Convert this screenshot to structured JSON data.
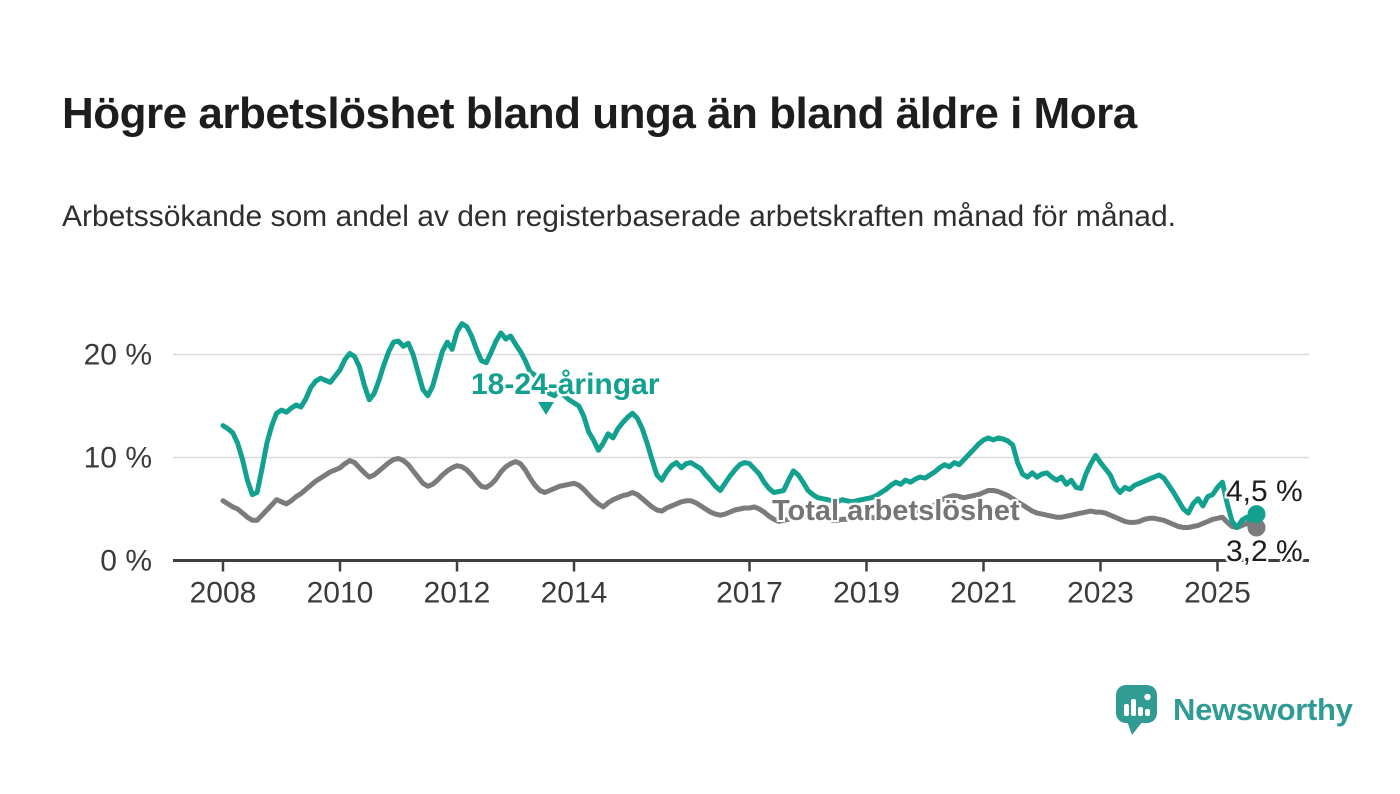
{
  "header": {
    "title": "Högre arbetslöshet bland unga än bland äldre i Mora",
    "subtitle": "Arbetssökande som andel av den registerbaserade arbetskraften månad för månad."
  },
  "chart_data": {
    "type": "line",
    "unit": "%",
    "grid": "horizontal-light",
    "x_axis": {
      "start": "2008-01",
      "end": "2025-09",
      "frequency": "monthly",
      "ticks": [
        2008,
        2010,
        2012,
        2014,
        2017,
        2019,
        2021,
        2023,
        2025
      ]
    },
    "y_axis": {
      "range": [
        0,
        24
      ],
      "ticks": [
        {
          "value": 0,
          "label": "0 %"
        },
        {
          "value": 10,
          "label": "10 %"
        },
        {
          "value": 20,
          "label": "20 %"
        }
      ]
    },
    "series": [
      {
        "name": "Total arbetslöshet",
        "color": "#7a7b7d",
        "end_value_label": "3,2 %",
        "values": [
          5.8,
          5.5,
          5.2,
          5.0,
          4.6,
          4.2,
          3.9,
          3.9,
          4.4,
          4.9,
          5.4,
          5.9,
          5.7,
          5.5,
          5.8,
          6.2,
          6.5,
          6.9,
          7.3,
          7.7,
          8.0,
          8.3,
          8.6,
          8.8,
          9.0,
          9.4,
          9.7,
          9.5,
          9.0,
          8.5,
          8.1,
          8.3,
          8.7,
          9.1,
          9.5,
          9.8,
          9.9,
          9.7,
          9.3,
          8.7,
          8.1,
          7.5,
          7.2,
          7.4,
          7.8,
          8.3,
          8.7,
          9.0,
          9.2,
          9.1,
          8.8,
          8.3,
          7.7,
          7.2,
          7.1,
          7.4,
          7.9,
          8.6,
          9.1,
          9.4,
          9.6,
          9.4,
          8.8,
          8.0,
          7.3,
          6.8,
          6.6,
          6.8,
          7.0,
          7.2,
          7.3,
          7.4,
          7.5,
          7.3,
          6.9,
          6.4,
          5.9,
          5.5,
          5.2,
          5.6,
          5.9,
          6.1,
          6.3,
          6.4,
          6.6,
          6.4,
          6.0,
          5.6,
          5.2,
          4.9,
          4.8,
          5.1,
          5.3,
          5.5,
          5.7,
          5.8,
          5.8,
          5.6,
          5.3,
          5.0,
          4.7,
          4.5,
          4.4,
          4.5,
          4.7,
          4.9,
          5.0,
          5.1,
          5.1,
          5.2,
          5.0,
          4.7,
          4.3,
          4.0,
          3.8,
          3.9,
          4.0,
          4.1,
          4.2,
          4.3,
          4.3,
          4.2,
          4.1,
          4.0,
          4.0,
          3.9,
          3.9,
          4.0,
          4.0,
          4.1,
          4.1,
          4.2,
          4.2,
          4.2,
          4.1,
          4.2,
          4.3,
          4.4,
          4.5,
          4.6,
          4.6,
          4.7,
          4.8,
          4.9,
          5.1,
          5.2,
          5.4,
          5.8,
          6.0,
          6.2,
          6.3,
          6.2,
          6.1,
          6.2,
          6.3,
          6.4,
          6.6,
          6.8,
          6.8,
          6.7,
          6.5,
          6.3,
          6.0,
          5.7,
          5.4,
          5.1,
          4.8,
          4.6,
          4.5,
          4.4,
          4.3,
          4.2,
          4.2,
          4.3,
          4.4,
          4.5,
          4.6,
          4.7,
          4.8,
          4.7,
          4.7,
          4.6,
          4.4,
          4.2,
          4.0,
          3.8,
          3.7,
          3.7,
          3.8,
          4.0,
          4.1,
          4.1,
          4.0,
          3.9,
          3.7,
          3.5,
          3.3,
          3.2,
          3.2,
          3.3,
          3.4,
          3.6,
          3.8,
          4.0,
          4.1,
          4.2,
          3.7,
          3.3,
          3.2,
          3.4,
          3.6,
          3.4,
          3.2
        ]
      },
      {
        "name": "18-24-åringar",
        "color": "#13a18f",
        "end_value_label": "4,5 %",
        "values": [
          13.1,
          12.8,
          12.4,
          11.4,
          9.8,
          7.8,
          6.4,
          6.6,
          8.9,
          11.4,
          13.1,
          14.3,
          14.6,
          14.4,
          14.8,
          15.1,
          14.9,
          15.7,
          16.8,
          17.4,
          17.7,
          17.5,
          17.3,
          17.9,
          18.5,
          19.5,
          20.1,
          19.8,
          18.8,
          17.0,
          15.6,
          16.2,
          17.5,
          19.0,
          20.3,
          21.2,
          21.3,
          20.8,
          21.1,
          20.0,
          18.3,
          16.6,
          16.0,
          16.9,
          18.6,
          20.3,
          21.2,
          20.5,
          22.2,
          23.0,
          22.7,
          21.8,
          20.5,
          19.4,
          19.2,
          20.2,
          21.3,
          22.1,
          21.5,
          21.8,
          21.0,
          20.3,
          19.4,
          18.3,
          18.0,
          17.3,
          16.6,
          16.2,
          16.0,
          16.5,
          16.0,
          15.6,
          15.3,
          15.0,
          14.0,
          12.5,
          11.7,
          10.7,
          11.4,
          12.3,
          11.9,
          12.8,
          13.4,
          13.9,
          14.3,
          13.8,
          12.8,
          11.4,
          9.8,
          8.3,
          7.8,
          8.6,
          9.2,
          9.5,
          9.0,
          9.4,
          9.5,
          9.2,
          8.9,
          8.3,
          7.8,
          7.2,
          6.8,
          7.5,
          8.2,
          8.8,
          9.3,
          9.5,
          9.4,
          8.9,
          8.4,
          7.6,
          7.0,
          6.6,
          6.7,
          6.8,
          7.8,
          8.7,
          8.3,
          7.6,
          6.8,
          6.4,
          6.1,
          6.0,
          5.9,
          5.8,
          5.7,
          5.9,
          5.8,
          5.7,
          5.8,
          5.9,
          6.0,
          6.1,
          6.3,
          6.6,
          6.9,
          7.3,
          7.6,
          7.4,
          7.8,
          7.6,
          7.9,
          8.1,
          8.0,
          8.3,
          8.6,
          9.0,
          9.3,
          9.1,
          9.5,
          9.3,
          9.8,
          10.3,
          10.8,
          11.3,
          11.7,
          11.9,
          11.7,
          11.9,
          11.8,
          11.6,
          11.2,
          9.5,
          8.4,
          8.1,
          8.5,
          8.1,
          8.4,
          8.5,
          8.1,
          7.8,
          8.1,
          7.4,
          7.8,
          7.1,
          7.0,
          8.4,
          9.4,
          10.2,
          9.5,
          8.9,
          8.3,
          7.2,
          6.6,
          7.1,
          6.9,
          7.3,
          7.5,
          7.7,
          7.9,
          8.1,
          8.3,
          8.0,
          7.3,
          6.6,
          5.8,
          5.0,
          4.6,
          5.5,
          6.0,
          5.3,
          6.2,
          6.4,
          7.1,
          7.6,
          5.5,
          3.8,
          3.2,
          3.9,
          4.2,
          3.7,
          4.5
        ]
      }
    ]
  },
  "colors": {
    "young_line": "#13a18f",
    "total_line": "#7a7b7d",
    "axis_text": "#3b3b3b",
    "gridline": "#dadada",
    "title_text": "#1d1d1d",
    "brand_teal": "#2f9c93"
  },
  "footer": {
    "brand": "Newsworthy"
  }
}
